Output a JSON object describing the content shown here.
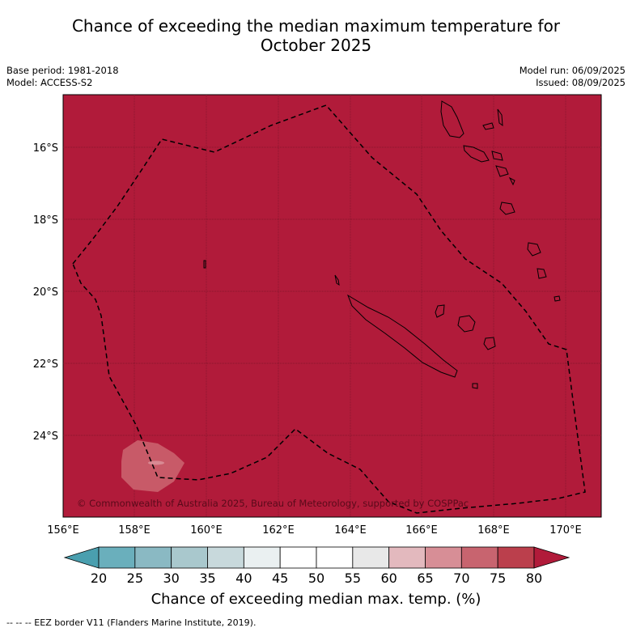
{
  "header": {
    "title_line1": "Chance of exceeding the median maximum temperature for",
    "title_line2": "October 2025",
    "base_period": "Base period: 1981-2018",
    "model": "Model: ACCESS-S2",
    "model_run": "Model run: 06/09/2025",
    "issued": "Issued: 08/09/2025"
  },
  "map": {
    "background_color": "#B11B3A",
    "lon_ticks": [
      "156°E",
      "158°E",
      "160°E",
      "162°E",
      "164°E",
      "166°E",
      "168°E",
      "170°E"
    ],
    "lat_ticks": [
      "16°S",
      "18°S",
      "20°S",
      "22°S",
      "24°S"
    ],
    "copyright": "© Commonwealth of Australia 2025, Bureau of Meteorology, supported by COSPPac"
  },
  "colorbar": {
    "labels": [
      "20",
      "25",
      "30",
      "35",
      "40",
      "45",
      "50",
      "55",
      "60",
      "65",
      "70",
      "75",
      "80"
    ],
    "colors": [
      "#4A9FAF",
      "#6AAFBC",
      "#8AB9C3",
      "#A9C8CD",
      "#C8D9DC",
      "#EAF0F1",
      "#FFFFFF",
      "#FFFFFF",
      "#E8E8E8",
      "#E3B9BE",
      "#D78E96",
      "#C8646F",
      "#BB3F4C",
      "#B11B3A"
    ],
    "title": "Chance of exceeding median max. temp. (%)"
  },
  "footnote": "-- -- -- EEZ border V11 (Flanders Marine Institute, 2019)."
}
